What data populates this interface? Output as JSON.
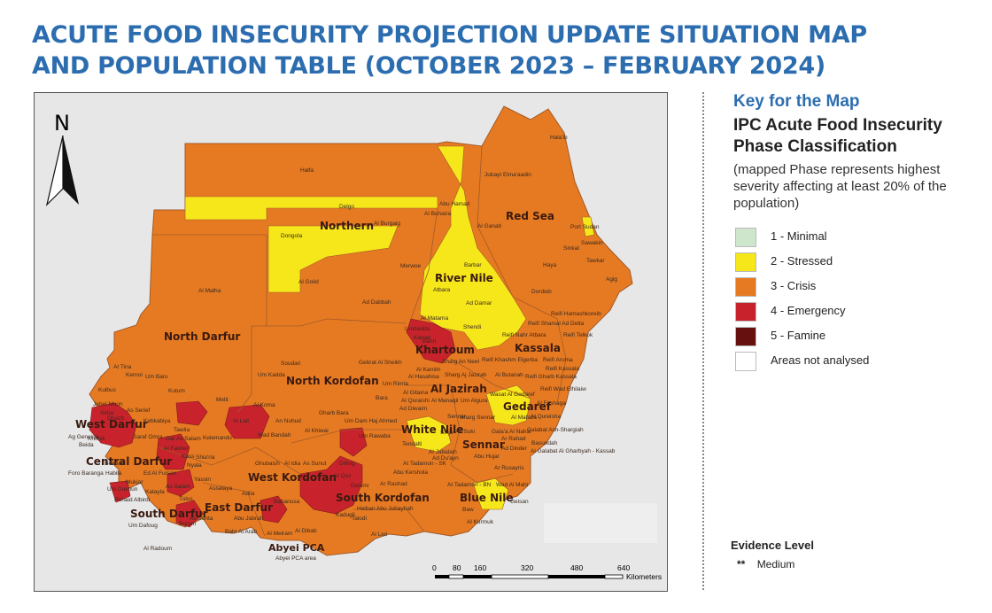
{
  "title": "ACUTE FOOD INSECURITY PROJECTION UPDATE SITUATION MAP AND POPULATION TABLE (OCTOBER 2023 – FEBRUARY 2024)",
  "map": {
    "north_arrow_label": "N",
    "states": [
      {
        "name": "Northern",
        "phase": 3
      },
      {
        "name": "Red Sea",
        "phase": 3
      },
      {
        "name": "River Nile",
        "phase": 3
      },
      {
        "name": "North Darfur",
        "phase": 3
      },
      {
        "name": "Kassala",
        "phase": 3
      },
      {
        "name": "Khartoum",
        "phase": 4
      },
      {
        "name": "North Kordofan",
        "phase": 3
      },
      {
        "name": "Al Jazirah",
        "phase": 3
      },
      {
        "name": "Gedaref",
        "phase": 3
      },
      {
        "name": "West Darfur",
        "phase": 4
      },
      {
        "name": "White Nile",
        "phase": 3
      },
      {
        "name": "Sennar",
        "phase": 3
      },
      {
        "name": "Central Darfur",
        "phase": 3
      },
      {
        "name": "West Kordofan",
        "phase": 3
      },
      {
        "name": "South Kordofan",
        "phase": 4
      },
      {
        "name": "Blue Nile",
        "phase": 3
      },
      {
        "name": "East Darfur",
        "phase": 3
      },
      {
        "name": "South Darfur",
        "phase": 3
      }
    ],
    "abyei": {
      "name": "Abyei PCA",
      "sub": "Abyei PCA area"
    },
    "localities": [
      "Halfa",
      "Hala'ib",
      "Delgo",
      "Jubayt Elma'aadin",
      "Abu Hamad",
      "Al Buhaira",
      "Al Burgaig",
      "Dongola",
      "Al Ganab",
      "Port Sudan",
      "Sawakin",
      "Sinkat",
      "Tawkar",
      "Haya",
      "Agig",
      "Merwoe",
      "Barbar",
      "Al Golid",
      "Al Malha",
      "Atbara",
      "Ad Dabbah",
      "Ad Damar",
      "Dordieb",
      "Al Matama",
      "Shendi",
      "Reifi Hamashkoreib",
      "Reifi Shamal Ad Delta",
      "Reifi Nahr Atbara",
      "Reifi Telkok",
      "Umbadda",
      "Bahri",
      "Karrari",
      "At Tina",
      "Kernoi",
      "Um Baru",
      "Soudari",
      "Gebrat Al Sheikh",
      "Sharg An Neel",
      "Reifi Khashm Elgerba",
      "Reifi Aroma",
      "Reifi Kassala",
      "Um Kadda",
      "Al Kamlin",
      "Al Hasahisa",
      "Sharg Aj Jazirah",
      "Al Butanah",
      "Reifi Gharb Kassala",
      "Kulbus",
      "Kutum",
      "Um Rimta",
      "Al Gitaina",
      "Wasat Al Gedaref",
      "Reifi Wad Elhilaiw",
      "Jebel Moon",
      "Melit",
      "Bara",
      "Al Quraishi",
      "Al Manaqil",
      "Um Algura",
      "Al Fashaga",
      "Sirba",
      "As Serief",
      "Al Koma",
      "Ghazb",
      "Gharb Bara",
      "Um Dam Haj Ahmed",
      "Ad Diwaim",
      "Sennar",
      "Sharg Sennar",
      "Al Mafaza",
      "Al Qureisha",
      "Kebkabiya",
      "Saraf Omra",
      "Tawila",
      "Kelemando",
      "Al Lait",
      "Wad Bandah",
      "An Nuhud",
      "Al Khiwai",
      "Um Rawaba",
      "Tendalti",
      "Sinja",
      "As Suki",
      "Gala'a Al Nahal",
      "Galabat Ash-Shargiah",
      "Ag Geneina",
      "Kreinik",
      "Beida",
      "Dar As Salam",
      "Al Fasher",
      "Kass",
      "Nyala",
      "Ad Dinder",
      "Ar Rahad",
      "Basundah",
      "Al Galabat Al Gharbyah - Kassab",
      "Foro Baranga",
      "Habila",
      "Um Dukhun",
      "Shia'ria",
      "Yassin",
      "As Salam",
      "Ad Du'ayn",
      "Abu Hujar",
      "Al Jabalain",
      "Ar Rusayris",
      "Mukjar",
      "Bendasi",
      "Ed Al Fursan",
      "Rehaid Albirdi",
      "Assalaya",
      "Adila",
      "Abu Kershola",
      "At Tadamon - SK",
      "Ar Rashad",
      "Ghubaish",
      "Al Idia",
      "As Sunut",
      "Babanusa",
      "Kadugli",
      "Heiban",
      "Abu Jubayhah",
      "Al Qoz",
      "Dilling",
      "Delami",
      "Buram",
      "Tulus",
      "As Sunta",
      "Abu Jabrah",
      "Bahr Al Arab",
      "Al Meiram",
      "Al Dibab",
      "Al Leri",
      "Talodi",
      "Um Dafoug",
      "Al Radoum",
      "At Tadamon - BN",
      "Wad Al Mahi",
      "Baw",
      "Geisan",
      "Al Kurmuk",
      "Katayla"
    ]
  },
  "scale": {
    "ticks": [
      "0",
      "80",
      "160",
      "320",
      "480",
      "640"
    ],
    "unit": "Kilometers"
  },
  "key": {
    "title": "Key for the Map",
    "subtitle": "IPC Acute Food Insecurity Phase Classification",
    "note": "(mapped Phase represents highest severity affecting at least 20% of the population)",
    "items": [
      {
        "label": "1 - Minimal",
        "color": "#cde6cc"
      },
      {
        "label": "2 - Stressed",
        "color": "#f6e71b"
      },
      {
        "label": "3 - Crisis",
        "color": "#e67a22"
      },
      {
        "label": "4 - Emergency",
        "color": "#c8232c"
      },
      {
        "label": "5 - Famine",
        "color": "#661010"
      },
      {
        "label": "Areas not analysed",
        "color": "#ffffff"
      }
    ]
  },
  "evidence": {
    "title": "Evidence Level",
    "stars": "**",
    "label": "Medium"
  }
}
